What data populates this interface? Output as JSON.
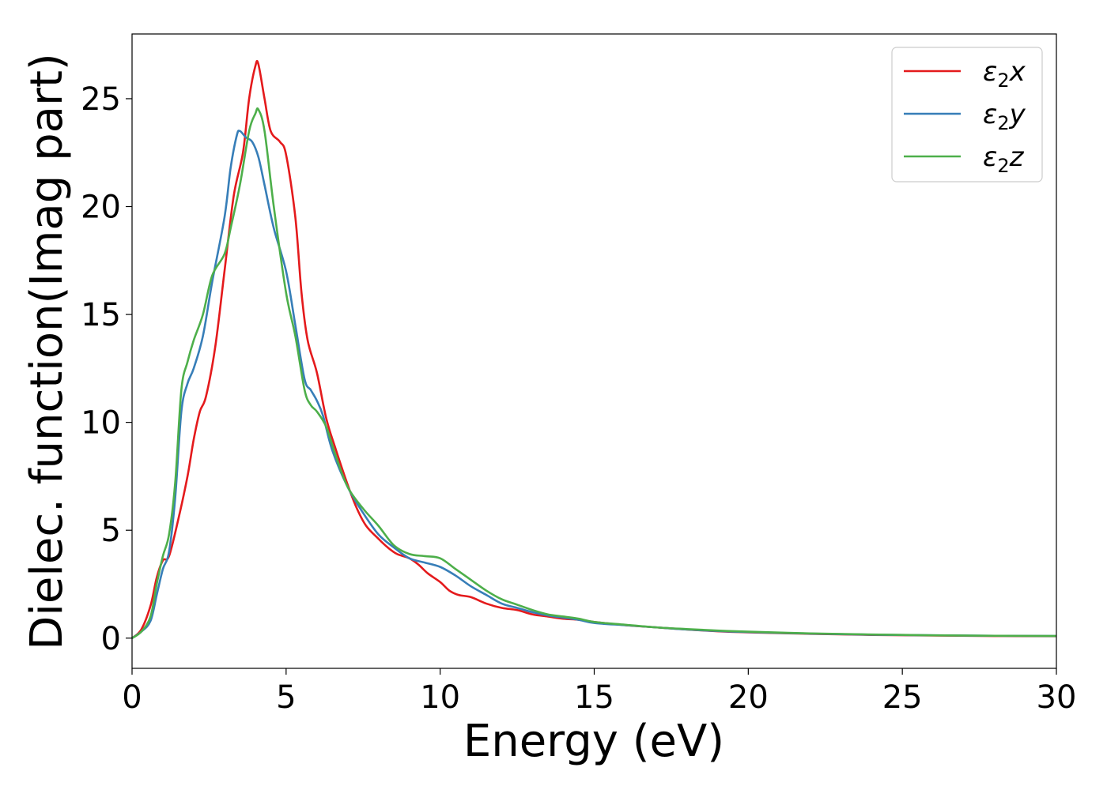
{
  "chart_data": {
    "type": "line",
    "xlabel": "Energy (eV)",
    "ylabel": "Dielec. function(Imag part)",
    "xlim": [
      0,
      30
    ],
    "ylim": [
      -1.4,
      28
    ],
    "xticks": [
      "0",
      "5",
      "10",
      "15",
      "20",
      "25",
      "30"
    ],
    "xtick_values": [
      0,
      5,
      10,
      15,
      20,
      25,
      30
    ],
    "yticks": [
      "0",
      "5",
      "10",
      "15",
      "20",
      "25"
    ],
    "ytick_values": [
      0,
      5,
      10,
      15,
      20,
      25
    ],
    "grid": false,
    "legend_position": "top-right",
    "series": [
      {
        "name": "ε₂x",
        "legend_base": "ε",
        "legend_sub": "2",
        "legend_var": "x",
        "color": "#e41a1c",
        "x": [
          0,
          0.3,
          0.6,
          0.8,
          1.0,
          1.2,
          1.5,
          1.8,
          2.0,
          2.2,
          2.4,
          2.7,
          3.0,
          3.3,
          3.6,
          3.8,
          4.0,
          4.1,
          4.3,
          4.5,
          4.8,
          5.0,
          5.3,
          5.5,
          5.7,
          6.0,
          6.3,
          6.6,
          7.0,
          7.3,
          7.6,
          8.0,
          8.3,
          8.6,
          9.0,
          9.3,
          9.6,
          10.0,
          10.3,
          10.6,
          11.0,
          11.5,
          12.0,
          12.5,
          13.0,
          13.5,
          14.0,
          14.5,
          15.0,
          16.0,
          17.0,
          18.0,
          19.0,
          20.0,
          22.0,
          24.0,
          26.0,
          28.0,
          30.0
        ],
        "y": [
          0,
          0.4,
          1.5,
          2.8,
          3.6,
          3.8,
          5.5,
          7.5,
          9.2,
          10.5,
          11.2,
          13.5,
          17.0,
          20.5,
          22.5,
          25.0,
          26.5,
          26.6,
          25.0,
          23.5,
          23.0,
          22.4,
          19.5,
          16.0,
          13.8,
          12.3,
          10.2,
          8.8,
          7.1,
          6.0,
          5.2,
          4.6,
          4.2,
          3.9,
          3.7,
          3.4,
          3.0,
          2.6,
          2.2,
          2.0,
          1.9,
          1.6,
          1.4,
          1.3,
          1.1,
          1.0,
          0.9,
          0.85,
          0.75,
          0.6,
          0.5,
          0.4,
          0.32,
          0.27,
          0.2,
          0.15,
          0.12,
          0.1,
          0.09
        ]
      },
      {
        "name": "ε₂y",
        "legend_base": "ε",
        "legend_sub": "2",
        "legend_var": "y",
        "color": "#377eb8",
        "x": [
          0,
          0.3,
          0.6,
          0.8,
          1.0,
          1.2,
          1.4,
          1.6,
          1.8,
          2.0,
          2.3,
          2.6,
          3.0,
          3.2,
          3.4,
          3.5,
          3.7,
          3.9,
          4.1,
          4.3,
          4.6,
          5.0,
          5.3,
          5.6,
          5.8,
          6.0,
          6.2,
          6.5,
          7.0,
          7.5,
          8.0,
          8.5,
          9.0,
          9.5,
          10.0,
          10.5,
          11.0,
          11.5,
          12.0,
          12.5,
          13.0,
          13.5,
          14.0,
          14.5,
          15.0,
          16.0,
          17.0,
          18.0,
          19.0,
          20.0,
          22.0,
          24.0,
          26.0,
          28.0,
          30.0
        ],
        "y": [
          0,
          0.3,
          0.8,
          2.0,
          3.2,
          4.0,
          6.5,
          10.5,
          11.8,
          12.5,
          14.0,
          16.5,
          19.5,
          21.8,
          23.3,
          23.5,
          23.2,
          23.0,
          22.3,
          21.0,
          19.0,
          17.0,
          14.5,
          12.0,
          11.5,
          11.0,
          10.3,
          8.7,
          7.0,
          5.8,
          4.8,
          4.2,
          3.7,
          3.5,
          3.3,
          2.9,
          2.4,
          2.0,
          1.6,
          1.4,
          1.2,
          1.05,
          0.95,
          0.85,
          0.7,
          0.6,
          0.5,
          0.4,
          0.33,
          0.28,
          0.21,
          0.16,
          0.13,
          0.11,
          0.1
        ]
      },
      {
        "name": "ε₂z",
        "legend_base": "ε",
        "legend_sub": "2",
        "legend_var": "z",
        "color": "#4daf4a",
        "x": [
          0,
          0.3,
          0.6,
          0.8,
          1.0,
          1.2,
          1.4,
          1.6,
          1.8,
          2.0,
          2.3,
          2.6,
          3.0,
          3.2,
          3.5,
          3.8,
          4.0,
          4.1,
          4.3,
          4.6,
          5.0,
          5.3,
          5.6,
          5.8,
          6.0,
          6.3,
          6.6,
          7.0,
          7.5,
          8.0,
          8.5,
          9.0,
          9.5,
          10.0,
          10.5,
          11.0,
          11.5,
          12.0,
          12.5,
          13.0,
          13.5,
          14.0,
          14.5,
          15.0,
          16.0,
          17.0,
          18.0,
          19.0,
          20.0,
          22.0,
          24.0,
          26.0,
          28.0,
          30.0
        ],
        "y": [
          0,
          0.3,
          1.0,
          2.5,
          3.8,
          4.8,
          7.2,
          11.5,
          12.8,
          13.8,
          15.0,
          16.8,
          17.8,
          19.0,
          21.0,
          23.5,
          24.3,
          24.5,
          23.5,
          20.0,
          16.0,
          14.0,
          11.5,
          10.8,
          10.5,
          9.8,
          8.5,
          7.0,
          6.0,
          5.2,
          4.3,
          3.9,
          3.8,
          3.7,
          3.2,
          2.7,
          2.2,
          1.8,
          1.55,
          1.3,
          1.1,
          1.0,
          0.9,
          0.75,
          0.62,
          0.5,
          0.42,
          0.35,
          0.3,
          0.22,
          0.17,
          0.13,
          0.11,
          0.1
        ]
      }
    ]
  }
}
